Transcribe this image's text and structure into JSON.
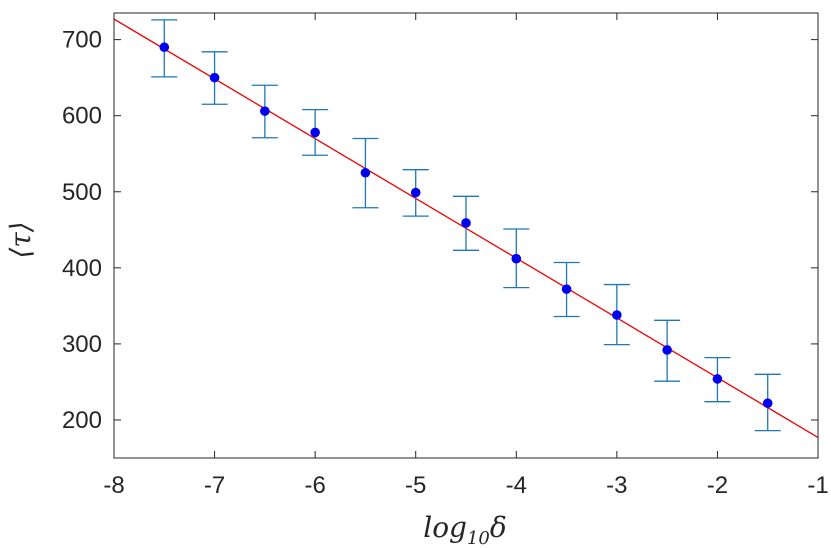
{
  "chart_data": {
    "type": "scatter",
    "title": "",
    "xlabel": "log10δ",
    "ylabel": "⟨τ⟩",
    "xlim": [
      -8,
      -1
    ],
    "ylim": [
      150,
      735
    ],
    "xticks": [
      -8,
      -7,
      -6,
      -5,
      -4,
      -3,
      -2,
      -1
    ],
    "yticks": [
      200,
      300,
      400,
      500,
      600,
      700
    ],
    "xtick_labels": [
      "-8",
      "-7",
      "-6",
      "-5",
      "-4",
      "-3",
      "-2",
      "-1"
    ],
    "ytick_labels": [
      "200",
      "300",
      "400",
      "500",
      "600",
      "700"
    ],
    "grid": false,
    "series": [
      {
        "kind": "errorbar",
        "x": [
          -7.5,
          -7.0,
          -6.5,
          -6.0,
          -5.5,
          -5.0,
          -4.5,
          -4.0,
          -3.5,
          -3.0,
          -2.5,
          -2.0,
          -1.5
        ],
        "y": [
          690,
          650,
          606,
          578,
          525,
          499,
          459,
          412,
          372,
          338,
          292,
          254,
          222
        ],
        "yerr_low": [
          651,
          615,
          571,
          548,
          479,
          468,
          423,
          374,
          336,
          299,
          251,
          224,
          186
        ],
        "yerr_high": [
          726,
          684,
          640,
          608,
          570,
          529,
          494,
          451,
          407,
          378,
          331,
          282,
          260
        ],
        "marker_color": "#0000ee",
        "errorbar_color": "#1f77b4"
      },
      {
        "kind": "fit-line",
        "x": [
          -8,
          -1
        ],
        "y": [
          727,
          177
        ],
        "color": "#ee0000"
      }
    ]
  }
}
